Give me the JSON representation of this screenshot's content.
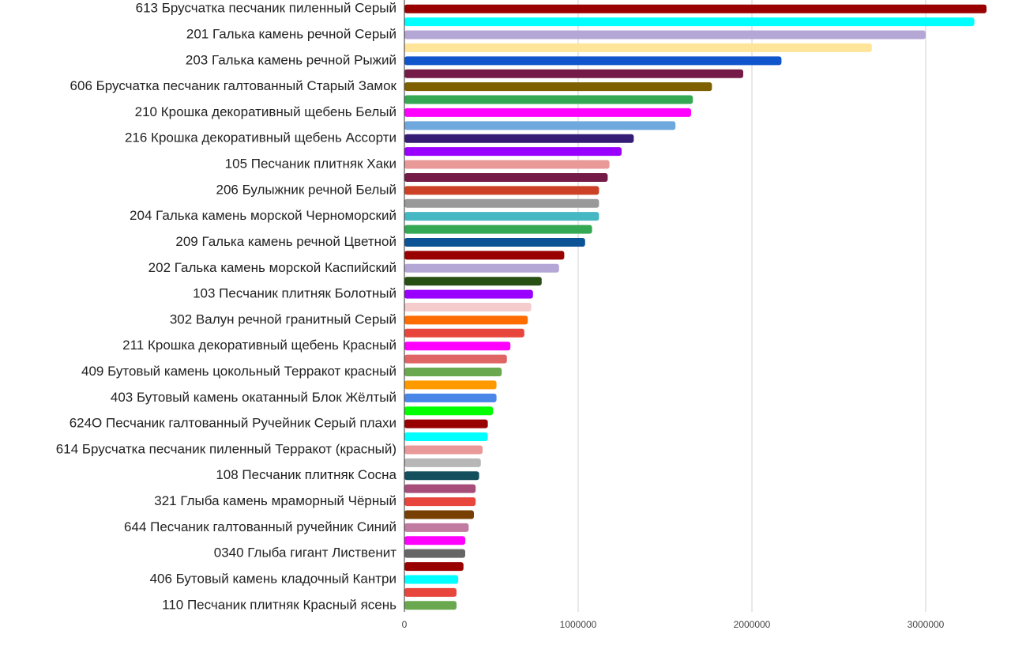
{
  "chart_data": {
    "type": "bar",
    "orientation": "horizontal",
    "categories": [
      "613 Брусчатка песчаник пиленный Серый",
      null,
      "201 Галька камень речной Серый",
      null,
      "203 Галька камень речной Рыжий",
      null,
      "606 Брусчатка песчаник галтованный Старый Замок",
      null,
      "210 Крошка декоративный щебень Белый",
      null,
      "216 Крошка декоративный щебень Ассорти",
      null,
      "105 Песчаник плитняк Хаки",
      null,
      "206 Булыжник речной Белый",
      null,
      "204 Галька камень морской Черноморский",
      null,
      "209 Галька камень речной Цветной",
      null,
      "202 Галька камень морской Каспийский",
      null,
      "103 Песчаник плитняк Болотный",
      null,
      "302 Валун речной гранитный Серый",
      null,
      "211 Крошка декоративный щебень Красный",
      null,
      "409 Бутовый камень цокольный Терракот красный",
      null,
      "403 Бутовый камень окатанный Блок Жёлтый",
      null,
      "624О Песчаник галтованный Ручейник Серый плахи",
      null,
      "614 Брусчатка песчаник пиленный Терракот (красный)",
      null,
      "108 Песчаник плитняк Сосна",
      null,
      "321 Глыба камень мраморный Чёрный",
      null,
      "644 Песчаник галтованный ручейник Синий",
      null,
      "0340 Глыба гигант Лиственит",
      null,
      "406 Бутовый камень кладочный Кантри",
      null,
      "110 Песчаник плитняк Красный ясень"
    ],
    "values": [
      3350000,
      3280000,
      3000000,
      2690000,
      2170000,
      1950000,
      1770000,
      1660000,
      1650000,
      1560000,
      1320000,
      1250000,
      1180000,
      1170000,
      1120000,
      1120000,
      1120000,
      1080000,
      1040000,
      920000,
      890000,
      790000,
      740000,
      730000,
      710000,
      690000,
      610000,
      590000,
      560000,
      530000,
      530000,
      510000,
      480000,
      480000,
      450000,
      440000,
      430000,
      410000,
      410000,
      400000,
      370000,
      350000,
      350000,
      340000,
      310000,
      300000,
      300000
    ],
    "colors": [
      "#990000",
      "#00ffff",
      "#b4a7d6",
      "#ffe599",
      "#1155cc",
      "#741b47",
      "#7f6000",
      "#34a853",
      "#ff00ff",
      "#6fa8dc",
      "#351c75",
      "#9900ff",
      "#ea9999",
      "#741b47",
      "#cc4125",
      "#999999",
      "#45b8c4",
      "#34a853",
      "#0b5394",
      "#990000",
      "#b4a7d6",
      "#274e13",
      "#9900ff",
      "#f4cccc",
      "#ff6d01",
      "#e8453c",
      "#ff00ff",
      "#e06666",
      "#6aa84f",
      "#ff9900",
      "#4a86e8",
      "#00ff00",
      "#990000",
      "#00ffff",
      "#ea9999",
      "#b7b7b7",
      "#134f5c",
      "#a64d79",
      "#e8453c",
      "#783f04",
      "#c27ba0",
      "#ff00ff",
      "#666666",
      "#990000",
      "#00ffff",
      "#e8453c",
      "#6aa84f"
    ],
    "xlim": [
      0,
      3400000
    ],
    "xticks": [
      0,
      1000000,
      2000000,
      3000000
    ],
    "grid": true
  }
}
